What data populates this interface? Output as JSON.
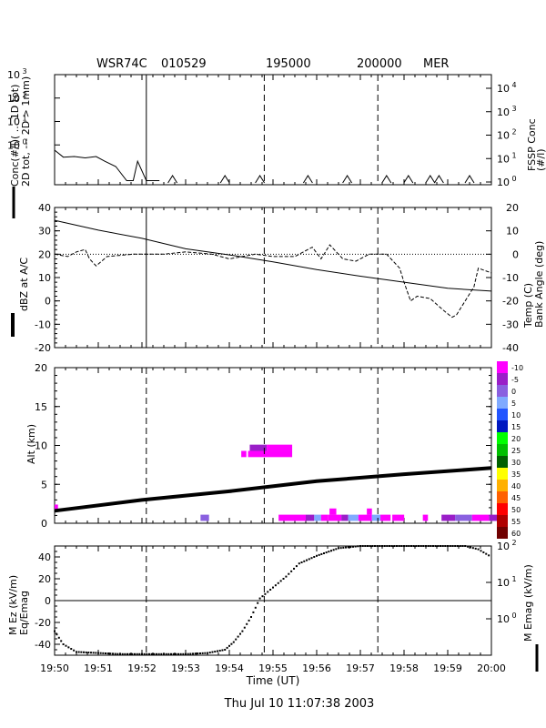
{
  "header": {
    "radar": "WSR74C",
    "date_code": "010529",
    "time_1": "195000",
    "time_2": "200000",
    "site": "MER"
  },
  "footer": {
    "timestamp": "Thu Jul 10 11:07:38 2003"
  },
  "x_axis": {
    "label": "Time (UT)",
    "ticks": [
      "19:50",
      "19:51",
      "19:52",
      "19:53",
      "19:54",
      "19:55",
      "19:56",
      "19:57",
      "19:58",
      "19:59",
      "20:00"
    ],
    "range_min": [
      0,
      10
    ]
  },
  "markers_min": [
    2.1,
    4.8,
    7.4
  ],
  "legend": {
    "levels": [
      "-10",
      "-5",
      "0",
      "5",
      "10",
      "15",
      "20",
      "25",
      "30",
      "35",
      "40",
      "45",
      "50",
      "55",
      "60"
    ],
    "colors": [
      "#ff00ff",
      "#9a1ec8",
      "#8a60e0",
      "#80aaff",
      "#2255ff",
      "#0018c0",
      "#00ff00",
      "#00c000",
      "#006000",
      "#ffff00",
      "#ffb000",
      "#ff6000",
      "#ff0000",
      "#b00000",
      "#700000"
    ]
  },
  "chart_data": [
    {
      "type": "line",
      "panel": "concentration",
      "left_label_lines": [
        "Conc(#/l)( ... 1D tot)",
        "2D tot, --- 2D > 1mm)"
      ],
      "right_label_lines": [
        "FSSP Conc",
        "(#/l)"
      ],
      "left_ticks": [
        {
          "base": "10",
          "exp": "3",
          "value": 1000
        },
        {
          "base": "10",
          "exp": "2",
          "value": 100
        },
        {
          "base": "10",
          "exp": "1",
          "value": 10
        },
        {
          "base": "10",
          "exp": "0",
          "value": 1
        }
      ],
      "right_ticks": [
        {
          "base": "10",
          "exp": "4",
          "value": 10000
        },
        {
          "base": "10",
          "exp": "3",
          "value": 1000
        },
        {
          "base": "10",
          "exp": "2",
          "value": 100
        },
        {
          "base": "10",
          "exp": "1",
          "value": 10
        },
        {
          "base": "10",
          "exp": "0",
          "value": 1
        }
      ],
      "x": [
        0,
        0.2,
        0.45,
        0.7,
        0.95,
        1.15,
        1.4,
        1.65,
        1.8,
        1.9,
        2.1,
        2.4
      ],
      "values": [
        0.6,
        0.3,
        0.32,
        0.28,
        0.32,
        0.2,
        0.12,
        0.03,
        0.03,
        0.2,
        0.03,
        0.03
      ],
      "spikes_x": [
        2.7,
        3.9,
        4.7,
        5.8,
        6.7,
        7.6,
        8.1,
        8.6,
        8.8,
        9.5
      ],
      "ylim": [
        0.02,
        1000
      ]
    },
    {
      "type": "line",
      "panel": "reflectivity",
      "left_label": "dBZ at A/C",
      "right_label_lines": [
        "Temp (C)",
        "Bank Angle (deg)"
      ],
      "left_ticks": [
        "40",
        "30",
        "20",
        "10",
        "0",
        "-10",
        "-20"
      ],
      "right_ticks": [
        "20",
        "10",
        "0",
        "-10",
        "-20",
        "-30",
        "-40"
      ],
      "ylim": [
        -20,
        40
      ],
      "right_ylim": [
        -40,
        20
      ],
      "series": [
        {
          "name": "Temp (C)",
          "x": [
            0,
            1,
            2,
            3,
            4,
            5,
            6,
            7,
            8,
            9,
            10
          ],
          "values": [
            14.5,
            10.3,
            6.8,
            2.3,
            -0.3,
            -3.3,
            -6.6,
            -9.4,
            -12.0,
            -14.6,
            -15.8
          ]
        },
        {
          "name": "Bank Angle (deg)",
          "x": [
            0,
            0.3,
            0.5,
            0.7,
            0.8,
            0.95,
            1.2,
            1.8,
            2.5,
            3.0,
            3.6,
            4.0,
            4.6,
            5.0,
            5.5,
            5.9,
            6.1,
            6.3,
            6.6,
            6.9,
            7.2,
            7.6,
            7.9,
            8.0,
            8.15,
            8.3,
            8.6,
            8.9,
            9.1,
            9.2,
            9.4,
            9.6,
            9.7,
            10.0
          ],
          "values": [
            0,
            -1,
            1,
            2,
            -2,
            -5,
            -1,
            0,
            0,
            1,
            0,
            -2,
            0,
            -1,
            -1,
            3,
            -2,
            4,
            -2,
            -3,
            0,
            0,
            -6,
            -12,
            -20,
            -18,
            -19,
            -24,
            -27,
            -26,
            -20,
            -14,
            -6,
            -8
          ]
        },
        {
          "name": "Reference 0 deg",
          "x": [
            0,
            10
          ],
          "values": [
            0,
            0
          ]
        }
      ]
    },
    {
      "type": "heatmap",
      "panel": "radar_section",
      "ylabel": "Alt (km)",
      "y_ticks": [
        "20",
        "15",
        "10",
        "5",
        "0"
      ],
      "ylim": [
        0,
        20
      ],
      "track": {
        "x": [
          0,
          2,
          4,
          6,
          8,
          10
        ],
        "values": [
          1.6,
          3.0,
          4.1,
          5.4,
          6.3,
          7.1
        ]
      },
      "cells": [
        {
          "x0": 0.0,
          "x1": 0.1,
          "y0": 1.6,
          "y1": 2.4,
          "level": "-10"
        },
        {
          "x0": 4.3,
          "x1": 4.55,
          "y0": 0.3,
          "y1": 1.1,
          "level": "0"
        },
        {
          "x0": 5.5,
          "x1": 5.65,
          "y0": 8.5,
          "y1": 9.3,
          "level": "-10"
        },
        {
          "x0": 5.7,
          "x1": 7.0,
          "y0": 8.5,
          "y1": 9.3,
          "level": "-10"
        },
        {
          "x0": 5.75,
          "x1": 6.25,
          "y0": 9.3,
          "y1": 10.1,
          "level": "-5"
        },
        {
          "x0": 6.25,
          "x1": 7.0,
          "y0": 9.3,
          "y1": 10.1,
          "level": "-10"
        },
        {
          "x0": 6.6,
          "x1": 7.4,
          "y0": 0.3,
          "y1": 1.1,
          "level": "-10"
        },
        {
          "x0": 7.4,
          "x1": 7.65,
          "y0": 0.3,
          "y1": 1.1,
          "level": "-5"
        },
        {
          "x0": 7.65,
          "x1": 7.85,
          "y0": 0.3,
          "y1": 1.1,
          "level": "5"
        },
        {
          "x0": 7.85,
          "x1": 8.05,
          "y0": 0.3,
          "y1": 1.1,
          "level": "-10"
        },
        {
          "x0": 8.05,
          "x1": 8.45,
          "y0": 0.3,
          "y1": 1.1,
          "level": "-10"
        },
        {
          "x0": 8.1,
          "x1": 8.3,
          "y0": 1.1,
          "y1": 1.9,
          "level": "-10"
        },
        {
          "x0": 8.45,
          "x1": 8.65,
          "y0": 0.3,
          "y1": 1.1,
          "level": "-5"
        },
        {
          "x0": 8.65,
          "x1": 8.95,
          "y0": 0.3,
          "y1": 1.1,
          "level": "5"
        },
        {
          "x0": 8.95,
          "x1": 9.35,
          "y0": 0.3,
          "y1": 1.1,
          "level": "-10"
        },
        {
          "x0": 9.2,
          "x1": 9.35,
          "y0": 1.1,
          "y1": 1.9,
          "level": "-10"
        },
        {
          "x0": 9.35,
          "x1": 9.6,
          "y0": 0.3,
          "y1": 1.1,
          "level": "5"
        },
        {
          "x0": 9.6,
          "x1": 9.9,
          "y0": 0.3,
          "y1": 1.1,
          "level": "-10"
        },
        {
          "x0": 9.95,
          "x1": 10.3,
          "y0": 0.3,
          "y1": 1.1,
          "level": "-10"
        },
        {
          "x0": 10.85,
          "x1": 11.0,
          "y0": 0.3,
          "y1": 1.1,
          "level": "-10"
        },
        {
          "x0": 11.4,
          "x1": 11.8,
          "y0": 0.3,
          "y1": 1.1,
          "level": "-5"
        },
        {
          "x0": 11.8,
          "x1": 12.3,
          "y0": 0.3,
          "y1": 1.1,
          "level": "0"
        },
        {
          "x0": 12.3,
          "x1": 12.8,
          "y0": 0.3,
          "y1": 1.1,
          "level": "-10"
        },
        {
          "x0": 12.8,
          "x1": 13.1,
          "y0": 0.3,
          "y1": 1.1,
          "level": "-5"
        }
      ],
      "cell_x_scale_note": "x in minutes after 19:50 scaled by 0.777"
    },
    {
      "type": "scatter",
      "panel": "electric_field",
      "left_label_lines": [
        "M Ez (kV/m)",
        "Eq/Emag"
      ],
      "right_label": "M Emag (kV/m)",
      "left_ticks": [
        "40",
        "20",
        "0",
        "-20",
        "-40"
      ],
      "right_ticks": [
        {
          "base": "10",
          "exp": "2"
        },
        {
          "base": "10",
          "exp": "1"
        },
        {
          "base": "10",
          "exp": "0"
        }
      ],
      "ylim": [
        -50,
        50
      ],
      "x": [
        0,
        0.2,
        0.5,
        1,
        1.5,
        2,
        2.5,
        3,
        3.5,
        3.9,
        4.1,
        4.3,
        4.5,
        4.7,
        5.0,
        5.3,
        5.6,
        6.0,
        6.5,
        7.0,
        7.5,
        8.0,
        8.5,
        9.0,
        9.4,
        9.7,
        10.0
      ],
      "values": [
        -28,
        -40,
        -47,
        -48,
        -49,
        -49,
        -49,
        -49,
        -48,
        -45,
        -38,
        -28,
        -15,
        2,
        12,
        22,
        34,
        41,
        48,
        50,
        50,
        50,
        50,
        50,
        50,
        47,
        40
      ]
    }
  ]
}
